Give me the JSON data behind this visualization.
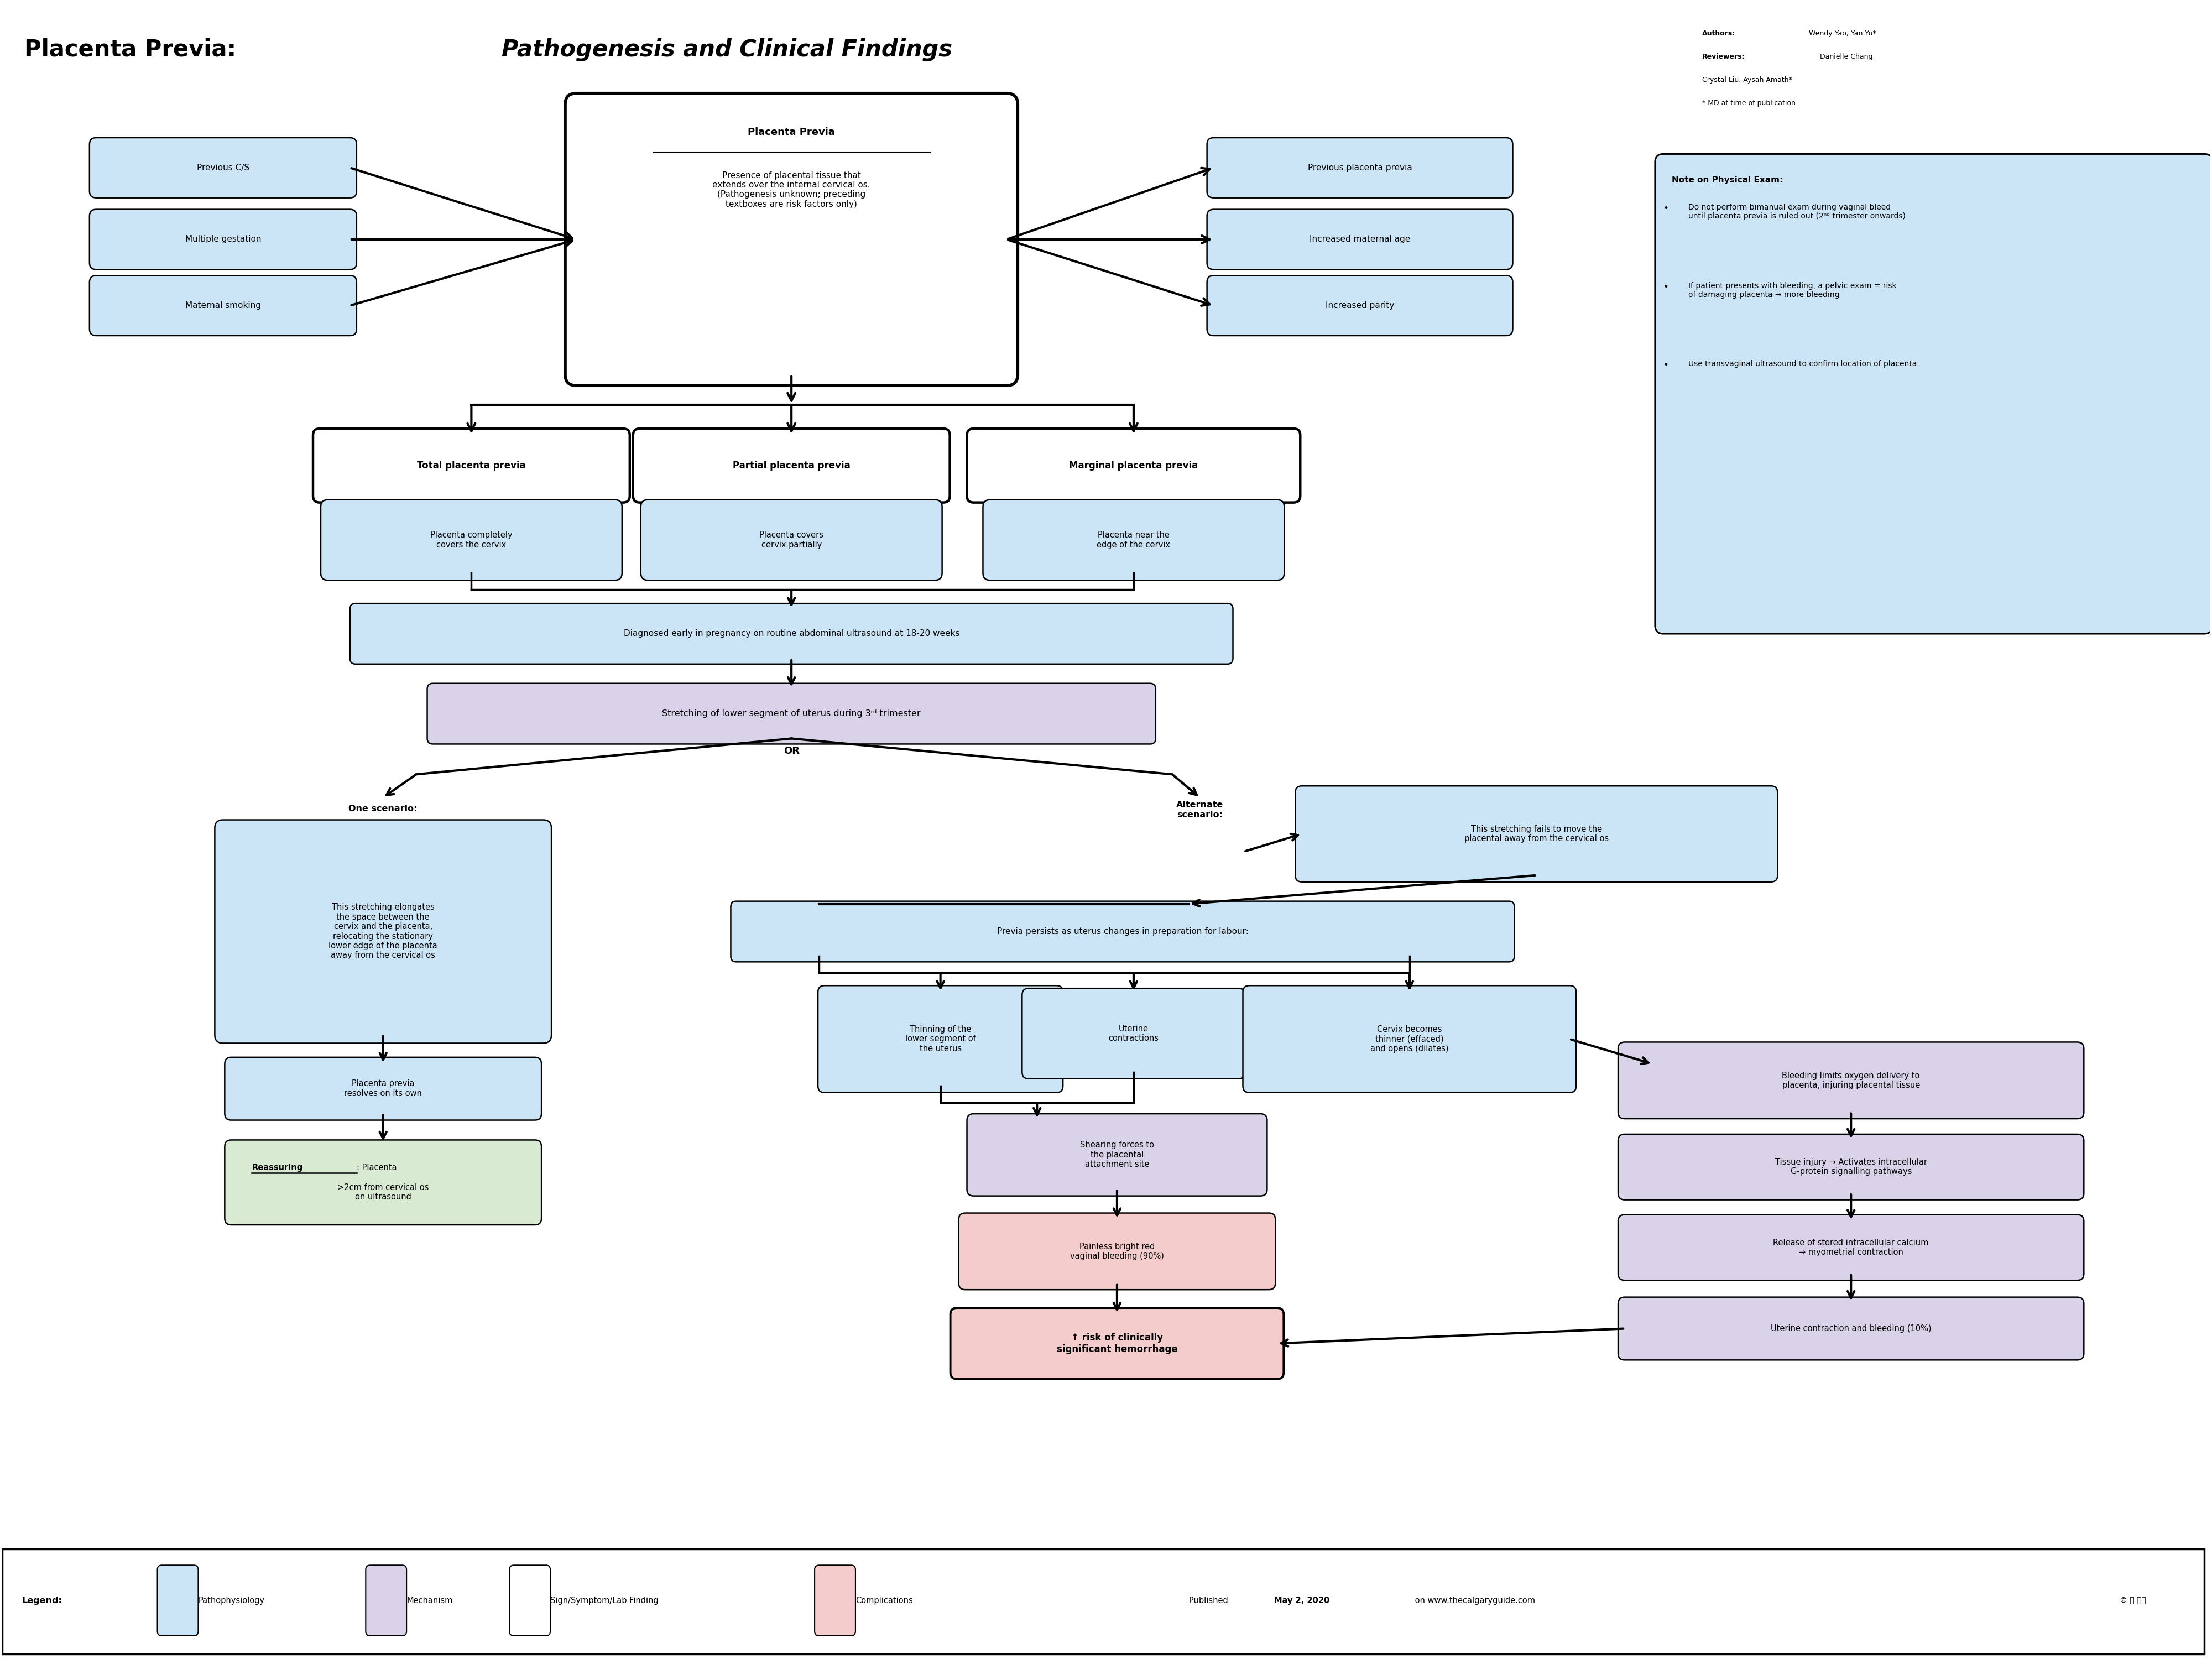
{
  "bg": "#ffffff",
  "lb": "#cce5f6",
  "lp": "#d9d2e9",
  "lg": "#d9ead3",
  "pk": "#f4cccc",
  "wh": "#ffffff",
  "title_regular": "Placenta Previa: ",
  "title_italic": "Pathogenesis and Clinical Findings",
  "left_risks": [
    "Previous C/S",
    "Multiple gestation",
    "Maternal smoking"
  ],
  "right_risks": [
    "Previous placenta previa",
    "Increased maternal age",
    "Increased parity"
  ],
  "pp_title": "Placenta Previa",
  "pp_body": "Presence of placental tissue that\nextends over the internal cervical os.\n(Pathogenesis unknown; preceding\ntextboxes are risk factors only)",
  "type1": "Total placenta previa",
  "type2": "Partial placenta previa",
  "type3": "Marginal placenta previa",
  "sub1": "Placenta completely\ncovers the cervix",
  "sub2": "Placenta covers\ncervix partially",
  "sub3": "Placenta near the\nedge of the cervix",
  "diag": "Diagnosed early in pregnancy on routine abdominal ultrasound at 18-20 weeks",
  "stretch": "Stretching of lower segment of uterus during 3ʳᵈ trimester",
  "one_scenario": "One scenario:",
  "one_body": "This stretching elongates\nthe space between the\ncervix and the placenta,\nrelocating the stationary\nlower edge of the placenta\naway from the cervical os",
  "resolves": "Placenta previa\nresolves on its own",
  "reassuring_label": "Reassuring",
  "reassuring_rest": ": Placenta\n>2cm from cervical os\non ultrasound",
  "alt_scenario": "Alternate\nscenario:",
  "alt_body": "This stretching fails to move the\nplacental away from the cervical os",
  "persists": "Previa persists as uterus changes in preparation for labour:",
  "thin_uterus": "Thinning of the\nlower segment of\nthe uterus",
  "uterine_cont": "Uterine\ncontractions",
  "cervix_box": "Cervix becomes\nthinner (effaced)\nand opens (dilates)",
  "shearing": "Shearing forces to\nthe placental\nattachment site",
  "bleeding_lim": "Bleeding limits oxygen delivery to\nplacenta, injuring placental tissue",
  "tissue_inj": "Tissue injury → Activates intracellular\nG-protein signalling pathways",
  "calcium": "Release of stored intracellular calcium\n→ myometrial contraction",
  "uterine_bleed": "Uterine contraction and bleeding (10%)",
  "painless": "Painless bright red\nvaginal bleeding (90%)",
  "hemorrhage": "↑ risk of clinically\nsignificant hemorrhage",
  "note_title": "Note on Physical Exam:",
  "note_b1": "Do not perform bimanual exam during vaginal bleed\nuntil placenta previa is ruled out (2ⁿᵈ trimester onwards)",
  "note_b2": "If patient presents with bleeding, a pelvic exam = risk\nof damaging placenta → more bleeding",
  "note_b3": "Use transvaginal ultrasound to confirm location of placenta",
  "authors_label1": "Authors:",
  "authors_val1": " Wendy Yao, Yan Yu*",
  "authors_label2": "Reviewers:",
  "authors_val2": " Danielle Chang,",
  "authors_line3": "Crystal Liu, Aysah Amath*",
  "authors_line4": "* MD at time of publication",
  "pub_pre": "Published ",
  "pub_date": "May 2, 2020",
  "pub_post": " on www.thecalgaryguide.com",
  "legend_label": "Legend:",
  "legend_items": [
    {
      "text": "Pathophysiology",
      "color": "#cce5f6"
    },
    {
      "text": "Mechanism",
      "color": "#d9d2e9"
    },
    {
      "text": "Sign/Symptom/Lab Finding",
      "color": "#ffffff"
    },
    {
      "text": "Complications",
      "color": "#f4cccc"
    }
  ]
}
